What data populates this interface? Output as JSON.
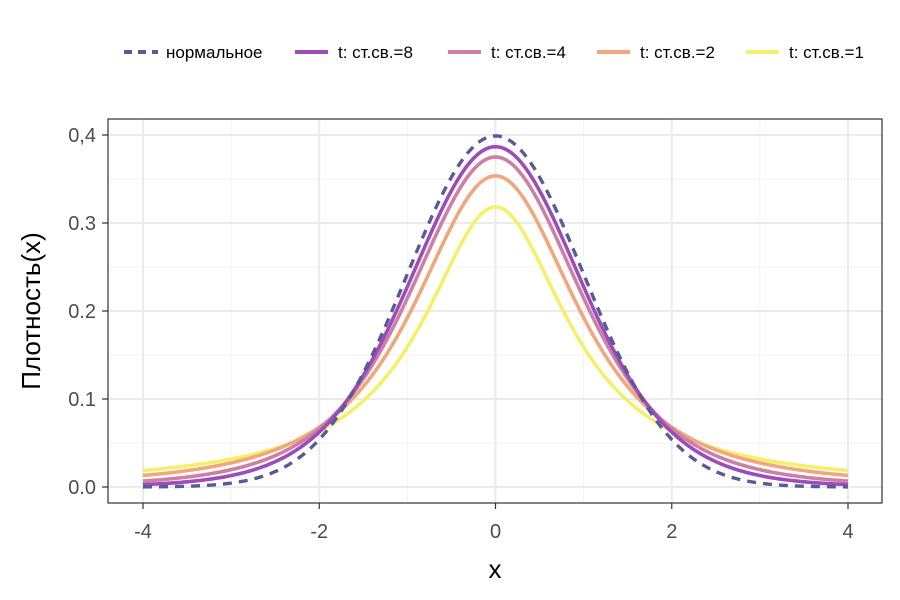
{
  "chart_data": {
    "type": "line",
    "xlabel": "x",
    "ylabel": "Плотность(x)",
    "xlim": [
      -4,
      4
    ],
    "ylim": [
      0,
      0.4
    ],
    "x_ticks": [
      -4,
      -2,
      0,
      2,
      4
    ],
    "x_tick_labels": [
      "-4",
      "-2",
      "0",
      "2",
      "4"
    ],
    "y_ticks": [
      0,
      0.1,
      0.2,
      0.3,
      0.4
    ],
    "y_tick_labels": [
      "0.0",
      "0.1",
      "0.2",
      "0.3",
      "0,4"
    ],
    "grid": true,
    "legend_position": "top",
    "series": [
      {
        "name": "нормальное",
        "distribution": "normal",
        "df": null,
        "color": "#5b5a96",
        "dashed": true,
        "x": [
          -4,
          -3,
          -2,
          -1.5,
          -1,
          -0.5,
          0,
          0.5,
          1,
          1.5,
          2,
          3,
          4
        ],
        "y": [
          0.0001,
          0.0044,
          0.054,
          0.1295,
          0.242,
          0.3521,
          0.3989,
          0.3521,
          0.242,
          0.1295,
          0.054,
          0.0044,
          0.0001
        ]
      },
      {
        "name": "t: ст.св.=8",
        "distribution": "t",
        "df": 8,
        "color": "#9b4dbb",
        "dashed": false,
        "x": [
          -4,
          -3,
          -2,
          -1.5,
          -1,
          -0.5,
          0,
          0.5,
          1,
          1.5,
          2,
          3,
          4
        ],
        "y": [
          0.0042,
          0.0127,
          0.0646,
          0.1332,
          0.2296,
          0.3392,
          0.3867,
          0.3392,
          0.2296,
          0.1332,
          0.0646,
          0.0127,
          0.0042
        ]
      },
      {
        "name": "t: ст.св.=4",
        "distribution": "t",
        "df": 4,
        "color": "#cd7fa4",
        "dashed": false,
        "x": [
          -4,
          -3,
          -2,
          -1.5,
          -1,
          -0.5,
          0,
          0.5,
          1,
          1.5,
          2,
          3,
          4
        ],
        "y": [
          0.0066,
          0.0197,
          0.0663,
          0.1331,
          0.2147,
          0.3224,
          0.375,
          0.3224,
          0.2147,
          0.1331,
          0.0663,
          0.0197,
          0.0066
        ]
      },
      {
        "name": "t: ст.св.=2",
        "distribution": "t",
        "df": 2,
        "color": "#f0a77c",
        "dashed": false,
        "x": [
          -4,
          -3,
          -2,
          -1.5,
          -1,
          -0.5,
          0,
          0.5,
          1,
          1.5,
          2,
          3,
          4
        ],
        "y": [
          0.0131,
          0.0274,
          0.068,
          0.1182,
          0.1925,
          0.2962,
          0.3536,
          0.2962,
          0.1925,
          0.1182,
          0.068,
          0.0274,
          0.0131
        ]
      },
      {
        "name": "t: ст.св.=1",
        "distribution": "t",
        "df": 1,
        "color": "#f5f06a",
        "dashed": false,
        "x": [
          -4,
          -3,
          -2,
          -1.5,
          -1,
          -0.5,
          0,
          0.5,
          1,
          1.5,
          2,
          3,
          4
        ],
        "y": [
          0.0187,
          0.0318,
          0.0637,
          0.0979,
          0.1592,
          0.2546,
          0.3183,
          0.2546,
          0.1592,
          0.0979,
          0.0637,
          0.0318,
          0.0187
        ]
      }
    ]
  }
}
